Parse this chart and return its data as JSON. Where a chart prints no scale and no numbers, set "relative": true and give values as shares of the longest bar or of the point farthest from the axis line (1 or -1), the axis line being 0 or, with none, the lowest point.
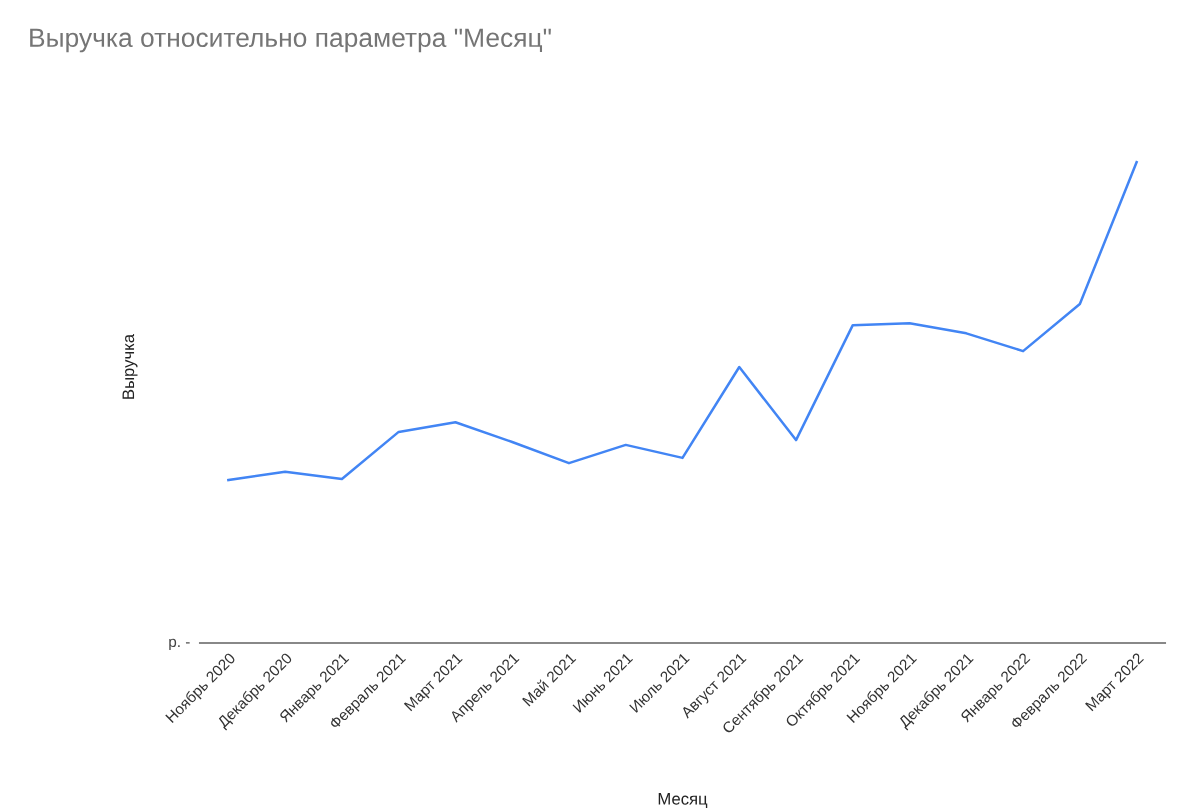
{
  "chart_data": {
    "type": "line",
    "title": "Выручка относительно параметра \"Месяц\"",
    "xlabel": "Месяц",
    "ylabel": "Выручка",
    "categories": [
      "Ноябрь 2020",
      "Декабрь 2020",
      "Январь 2021",
      "Февраль 2021",
      "Март 2021",
      "Апрель 2021",
      "Май 2021",
      "Июнь 2021",
      "Июль 2021",
      "Август 2021",
      "Сентябрь 2021",
      "Октябрь 2021",
      "Ноябрь 2021",
      "Декабрь 2021",
      "Январь 2022",
      "Февраль 2022",
      "Март 2022"
    ],
    "series": [
      {
        "color": "#4285f4",
        "values": [
          0.339,
          0.356,
          0.341,
          0.439,
          0.459,
          0.418,
          0.374,
          0.412,
          0.385,
          0.574,
          0.422,
          0.661,
          0.665,
          0.644,
          0.607,
          0.705,
          1.0
        ]
      }
    ],
    "relative": true,
    "annotations": [
      "р. -"
    ]
  }
}
